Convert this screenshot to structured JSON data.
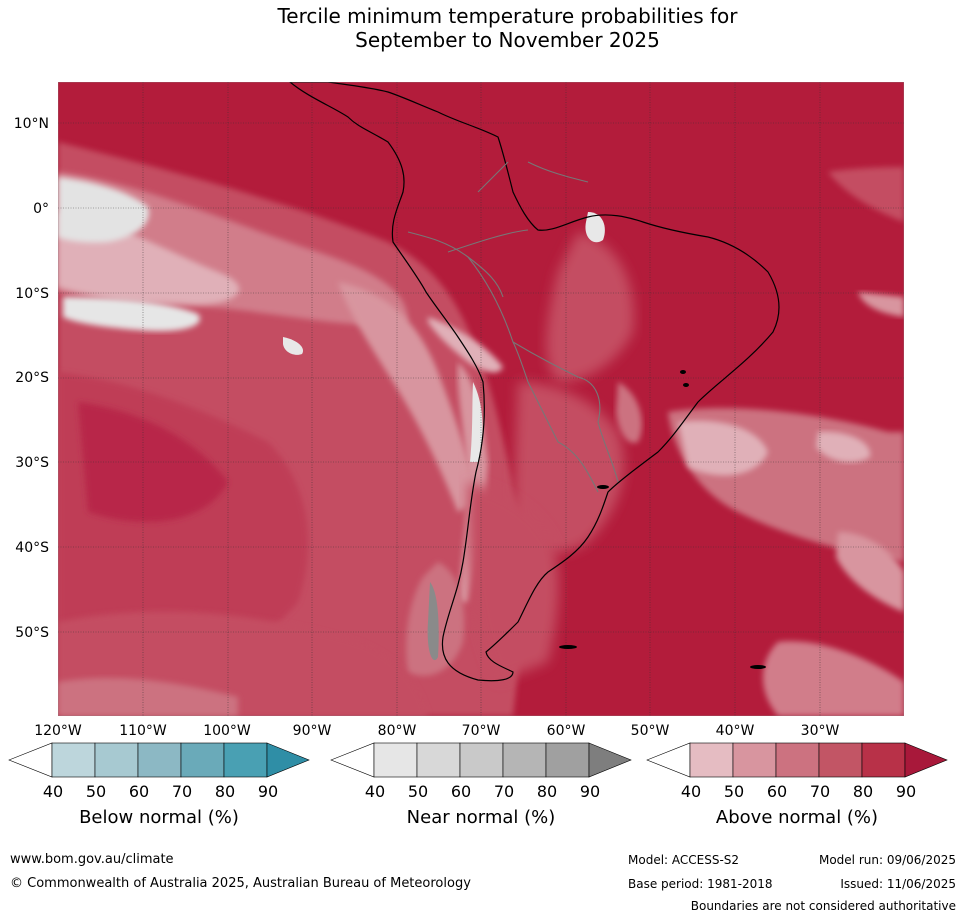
{
  "title_line1": "Tercile minimum temperature probabilities for",
  "title_line2": "September to November 2025",
  "lat_labels": [
    "10°N",
    "0°",
    "10°S",
    "20°S",
    "30°S",
    "40°S",
    "50°S"
  ],
  "lon_labels": [
    "120°W",
    "110°W",
    "100°W",
    "90°W",
    "80°W",
    "70°W",
    "60°W",
    "50°W",
    "40°W",
    "30°W"
  ],
  "colorbars": [
    {
      "title": "Below normal (%)",
      "ticks": [
        "40",
        "50",
        "60",
        "70",
        "80",
        "90"
      ],
      "colors": [
        "#ffffff",
        "#bdd6dc",
        "#a7c9d1",
        "#8cb8c4",
        "#6aaab9",
        "#49a0b3",
        "#2f8ea6"
      ]
    },
    {
      "title": "Near normal (%)",
      "ticks": [
        "40",
        "50",
        "60",
        "70",
        "80",
        "90"
      ],
      "colors": [
        "#ffffff",
        "#e6e6e6",
        "#d8d8d8",
        "#c9c9c9",
        "#b5b5b5",
        "#a0a0a0",
        "#7e7e7e"
      ]
    },
    {
      "title": "Above normal (%)",
      "ticks": [
        "40",
        "50",
        "60",
        "70",
        "80",
        "90"
      ],
      "colors": [
        "#ffffff",
        "#e5bcc2",
        "#d8959f",
        "#cc7280",
        "#c25565",
        "#b83148",
        "#a8183a"
      ]
    }
  ],
  "footer": {
    "website": "www.bom.gov.au/climate",
    "copyright": "© Commonwealth of Australia 2025, Australian Bureau of Meteorology",
    "model": "Model: ACCESS-S2",
    "model_run": "Model run: 09/06/2025",
    "base_period": "Base period: 1981-2018",
    "issued": "Issued: 11/06/2025",
    "disclaimer": "Boundaries are not considered authoritative"
  }
}
